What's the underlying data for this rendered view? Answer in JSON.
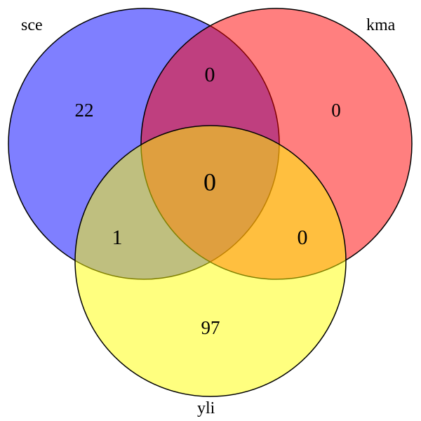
{
  "sets": [
    {
      "id": "sce",
      "label": "sce",
      "color": "#0000ff"
    },
    {
      "id": "kma",
      "label": "kma",
      "color": "#ff0000"
    },
    {
      "id": "yli",
      "label": "yli",
      "color": "#ffff00"
    }
  ],
  "regions": {
    "sce_only": "22",
    "kma_only": "0",
    "yli_only": "97",
    "sce_kma": "0",
    "sce_yli": "1",
    "kma_yli": "0",
    "all": "0"
  },
  "style": {
    "fill_opacity": 0.5,
    "stroke": "#000000"
  }
}
